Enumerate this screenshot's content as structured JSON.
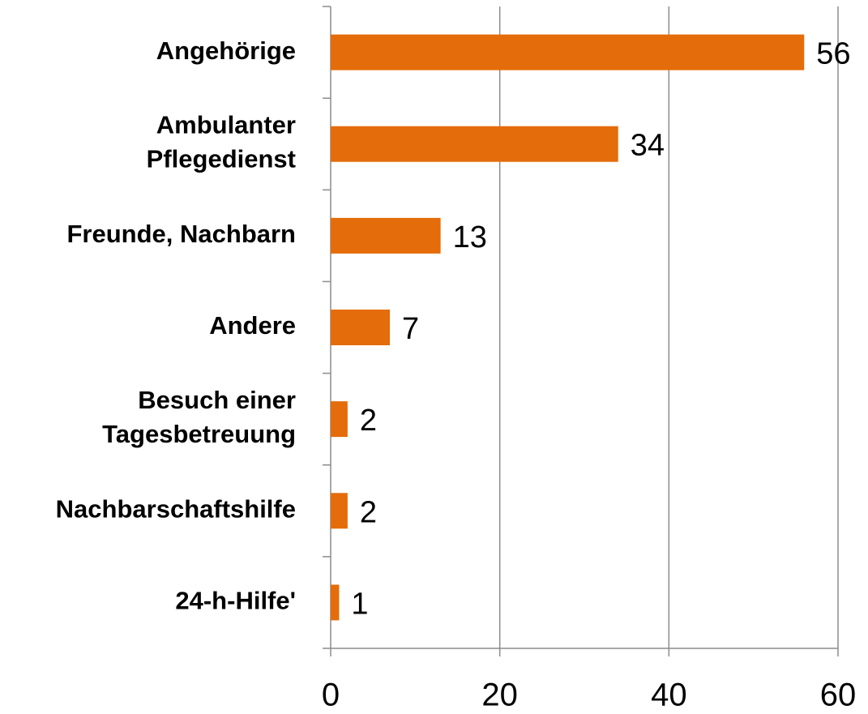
{
  "chart_data": {
    "type": "barh",
    "categories": [
      "Angehörige",
      "Ambulanter\nPflegedienst",
      "Freunde, Nachbarn",
      "Andere",
      "Besuch einer\nTagesbetreuung",
      "Nachbarschaftshilfe",
      "24-h-Hilfe'"
    ],
    "values": [
      56,
      34,
      13,
      7,
      2,
      2,
      1
    ],
    "color": "#e46c0a",
    "xlim": [
      0,
      60
    ],
    "xticks": [
      0,
      20,
      40,
      60
    ],
    "grid": true
  }
}
